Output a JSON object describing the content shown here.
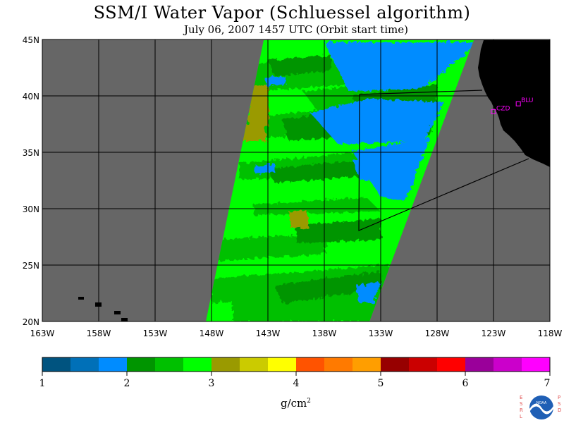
{
  "title": "SSM/I Water Vapor (Schluessel algorithm)",
  "subtitle": "July 06, 2007  1457 UTC  (Orbit start time)",
  "units": "g/cm",
  "units_sup": "2",
  "colors": {
    "land": "#000000",
    "no_data": "#666666",
    "grid": "#000000",
    "station": "#ff00ff"
  },
  "map": {
    "lon_range": [
      -163,
      -118
    ],
    "lat_range": [
      20,
      45
    ],
    "lon_ticks": [
      {
        "lon": -163,
        "label": "163W"
      },
      {
        "lon": -158,
        "label": "158W"
      },
      {
        "lon": -153,
        "label": "153W"
      },
      {
        "lon": -148,
        "label": "148W"
      },
      {
        "lon": -143,
        "label": "143W"
      },
      {
        "lon": -138,
        "label": "138W"
      },
      {
        "lon": -133,
        "label": "133W"
      },
      {
        "lon": -128,
        "label": "128W"
      },
      {
        "lon": -123,
        "label": "123W"
      },
      {
        "lon": -118,
        "label": "118W"
      }
    ],
    "lat_ticks": [
      {
        "lat": 45,
        "label": "45N"
      },
      {
        "lat": 40,
        "label": "40N"
      },
      {
        "lat": 35,
        "label": "35N"
      },
      {
        "lat": 30,
        "label": "30N"
      },
      {
        "lat": 25,
        "label": "25N"
      },
      {
        "lat": 20,
        "label": "20N"
      }
    ],
    "stations": [
      {
        "name": "CZD",
        "lon": -123.0,
        "lat": 38.6
      },
      {
        "name": "BLU",
        "lon": -120.8,
        "lat": 39.3
      }
    ]
  },
  "colorbar": {
    "colors": [
      "#00537f",
      "#0070b8",
      "#008cff",
      "#009500",
      "#00c000",
      "#00ff00",
      "#9a9a00",
      "#cbcb00",
      "#ffff00",
      "#ff5300",
      "#ff7a00",
      "#ff9e00",
      "#970000",
      "#cb0000",
      "#ff0000",
      "#9a009a",
      "#cb00cb",
      "#ff00ff"
    ],
    "tick_values": [
      1,
      2,
      3,
      4,
      5,
      6,
      7
    ],
    "tick_labels": [
      "1",
      "2",
      "3",
      "4",
      "5",
      "6",
      "7"
    ]
  },
  "logo": {
    "left_text": "ESRL",
    "right_text": "PSD",
    "center_text": "NOAA"
  }
}
